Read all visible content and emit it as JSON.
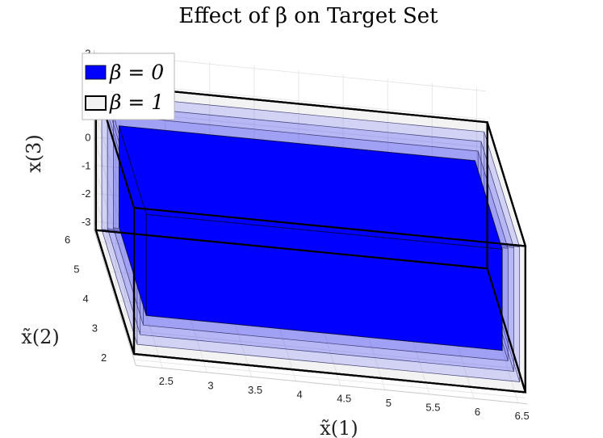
{
  "chart_data": {
    "type": "3d-box",
    "title": "Effect of β on Target Set",
    "xlabel": "x̃(1)",
    "ylabel": "x̃(2)",
    "zlabel": "x(3)",
    "x_ticks": [
      "2.5",
      "3",
      "3.5",
      "4",
      "4.5",
      "5",
      "5.5",
      "6",
      "6.5"
    ],
    "y_ticks": [
      "2",
      "3",
      "4",
      "5",
      "6"
    ],
    "z_ticks": [
      "3",
      "2",
      "1",
      "0",
      "-1",
      "-2",
      "-3"
    ],
    "xlim": [
      2.2,
      6.6
    ],
    "ylim": [
      1.8,
      6.4
    ],
    "zlim": [
      -3.3,
      3.1
    ],
    "grid": true,
    "legend_position": "top-left",
    "series": [
      {
        "name": "β = 0",
        "label_math": "β = 0",
        "style": "filled",
        "color": "#0000ff",
        "x": [
          2.4,
          6.4
        ],
        "y": [
          2.6,
          5.6
        ],
        "z": [
          -2.3,
          1.3
        ]
      },
      {
        "name": "",
        "style": "translucent",
        "color": "#3333ff",
        "x": [
          2.35,
          6.45
        ],
        "y": [
          2.45,
          5.75
        ],
        "z": [
          -2.5,
          1.5
        ]
      },
      {
        "name": "",
        "style": "translucent",
        "color": "#3333ff",
        "x": [
          2.3,
          6.5
        ],
        "y": [
          2.3,
          5.9
        ],
        "z": [
          -2.7,
          1.7
        ]
      },
      {
        "name": "",
        "style": "translucent",
        "color": "#3333ff",
        "x": [
          2.25,
          6.55
        ],
        "y": [
          2.15,
          6.05
        ],
        "z": [
          -2.9,
          1.9
        ]
      },
      {
        "name": "β = 1",
        "label_math": "β = 1",
        "style": "outline",
        "color": "#000000",
        "x": [
          2.2,
          6.6
        ],
        "y": [
          2.0,
          6.2
        ],
        "z": [
          -3.1,
          2.1
        ]
      }
    ]
  }
}
